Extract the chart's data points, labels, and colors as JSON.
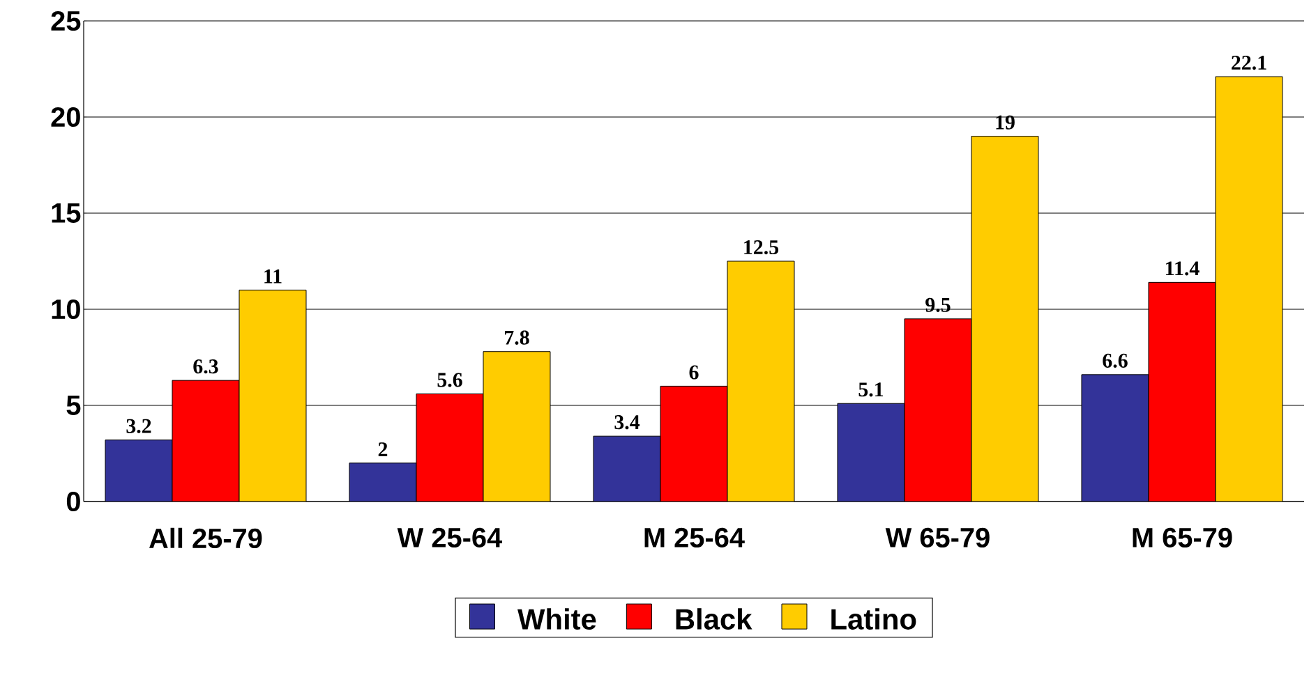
{
  "chart_data": {
    "type": "bar",
    "categories": [
      "All 25-79",
      "W 25-64",
      "M 25-64",
      "W 65-79",
      "M 65-79"
    ],
    "series": [
      {
        "name": "White",
        "color": "#333399",
        "values": [
          3.2,
          2,
          3.4,
          5.1,
          6.6
        ]
      },
      {
        "name": "Black",
        "color": "#ff0000",
        "values": [
          6.3,
          5.6,
          6,
          9.5,
          11.4
        ]
      },
      {
        "name": "Latino",
        "color": "#ffcc00",
        "values": [
          11,
          7.8,
          12.5,
          19,
          22.1
        ]
      }
    ],
    "ylim": [
      0,
      25
    ],
    "yticks": [
      0,
      5,
      10,
      15,
      20,
      25
    ],
    "grid": "y",
    "legend": "bottom",
    "data_labels": true
  }
}
